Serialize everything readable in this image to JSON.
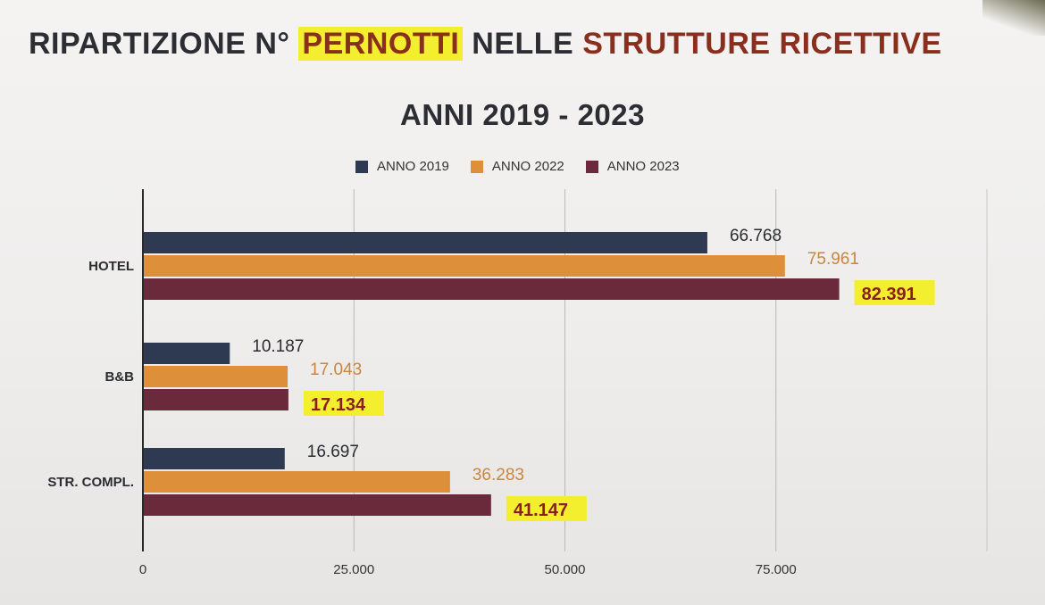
{
  "title": {
    "part1": "RIPARTIZIONE N°",
    "highlight": "PERNOTTI",
    "part2": "NELLE",
    "part3": "STRUTTURE RICETTIVE",
    "line2": "ANNI 2019 - 2023"
  },
  "colors": {
    "anno2019": "#2e3a52",
    "anno2022": "#de8f3a",
    "anno2023": "#6b2a3c",
    "highlight": "#f4ef2e",
    "title_red": "#8a2e1e",
    "label_2022": "#c9863c",
    "label_2023": "#8a1f1f"
  },
  "chart_data": {
    "type": "bar",
    "orientation": "horizontal",
    "title": "RIPARTIZIONE N° PERNOTTI NELLE STRUTTURE RICETTIVE ANNI 2019 - 2023",
    "categories": [
      "HOTEL",
      "B&B",
      "STR. COMPL."
    ],
    "series": [
      {
        "name": "ANNO 2019",
        "values": [
          66768,
          10187,
          16697
        ],
        "labels": [
          "66.768",
          "10.187",
          "16.697"
        ]
      },
      {
        "name": "ANNO 2022",
        "values": [
          75961,
          17043,
          36283
        ],
        "labels": [
          "75.961",
          "17.043",
          "36.283"
        ]
      },
      {
        "name": "ANNO 2023",
        "values": [
          82391,
          17134,
          41147
        ],
        "labels": [
          "82.391",
          "17.134",
          "41.147"
        ]
      }
    ],
    "xlim": [
      0,
      100000
    ],
    "xticks": [
      0,
      25000,
      50000,
      75000
    ],
    "xtick_labels": [
      "0",
      "25.000",
      "50.000",
      "75.000"
    ],
    "grid": true,
    "legend_position": "top"
  }
}
